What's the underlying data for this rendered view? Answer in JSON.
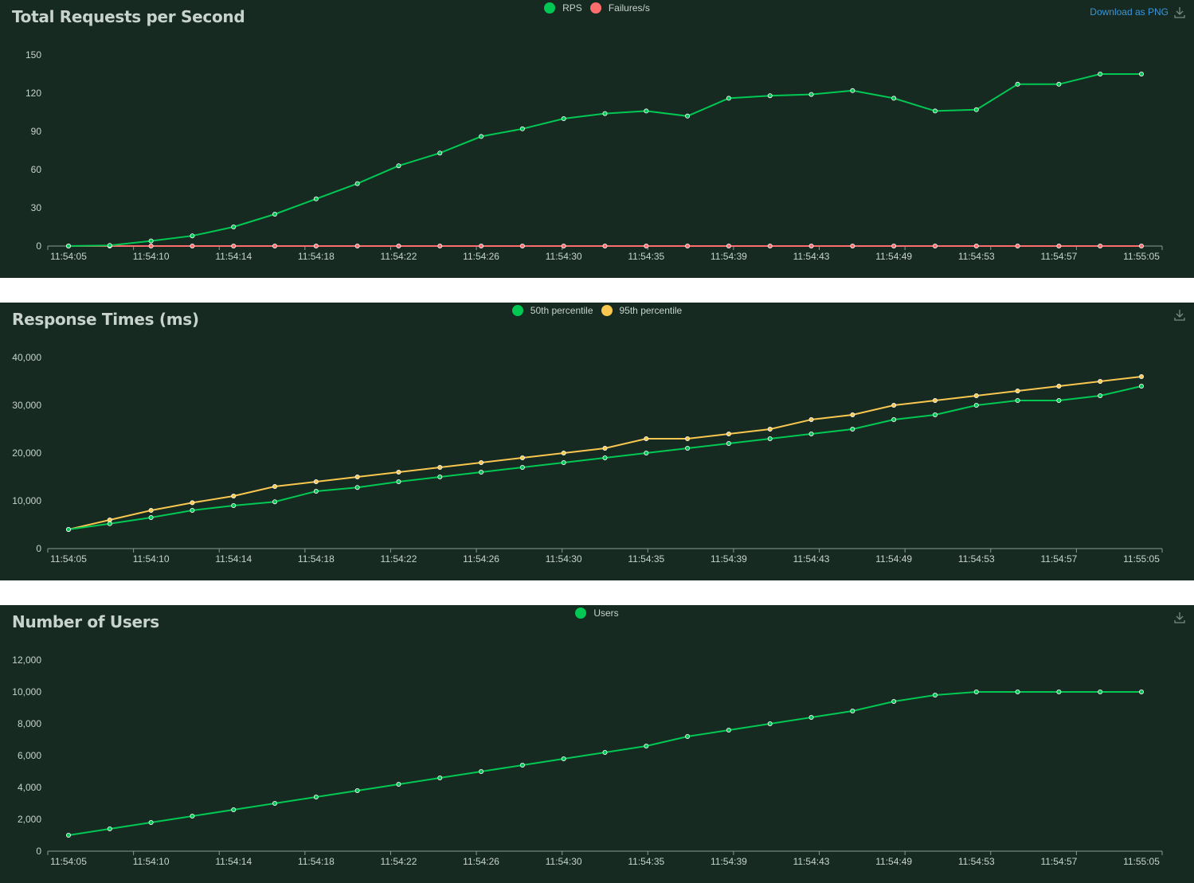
{
  "download_label": "Download as PNG",
  "icons": {
    "download": "download-icon"
  },
  "charts": [
    {
      "title": "Total Requests per Second",
      "legend": [
        {
          "label": "RPS",
          "color": "#00c853"
        },
        {
          "label": "Failures/s",
          "color": "#ff6d6d"
        }
      ]
    },
    {
      "title": "Response Times (ms)",
      "legend": [
        {
          "label": "50th percentile",
          "color": "#00c853"
        },
        {
          "label": "95th percentile",
          "color": "#f9c74f"
        }
      ]
    },
    {
      "title": "Number of Users",
      "legend": [
        {
          "label": "Users",
          "color": "#00c853"
        }
      ]
    }
  ],
  "chart_data": [
    {
      "type": "line",
      "title": "Total Requests per Second",
      "x": [
        "11:54:05",
        "11:54:07",
        "11:54:10",
        "11:54:12",
        "11:54:14",
        "11:54:16",
        "11:54:18",
        "11:54:20",
        "11:54:22",
        "11:54:24",
        "11:54:26",
        "11:54:28",
        "11:54:30",
        "11:54:32",
        "11:54:35",
        "11:54:37",
        "11:54:39",
        "11:54:41",
        "11:54:43",
        "11:54:45",
        "11:54:49",
        "11:54:51",
        "11:54:53",
        "11:54:55",
        "11:54:57",
        "11:54:59",
        "11:55:05"
      ],
      "x_tick_labels": [
        "11:54:05",
        "11:54:10",
        "11:54:14",
        "11:54:18",
        "11:54:22",
        "11:54:26",
        "11:54:30",
        "11:54:35",
        "11:54:39",
        "11:54:43",
        "11:54:49",
        "11:54:53",
        "11:54:57",
        "11:55:05"
      ],
      "ylim": [
        0,
        150
      ],
      "yticks": [
        "0",
        "30",
        "60",
        "90",
        "120",
        "150"
      ],
      "grid": false,
      "series": [
        {
          "name": "RPS",
          "color": "#00c853",
          "values": [
            0,
            0.5,
            4,
            8,
            15,
            25,
            37,
            49,
            63,
            73,
            86,
            92,
            100,
            104,
            106,
            102,
            116,
            118,
            119,
            122,
            116,
            106,
            107,
            127,
            127,
            135,
            135
          ]
        },
        {
          "name": "Failures/s",
          "color": "#ff6d6d",
          "values": [
            0,
            0,
            0,
            0,
            0,
            0,
            0,
            0,
            0,
            0,
            0,
            0,
            0,
            0,
            0,
            0,
            0,
            0,
            0,
            0,
            0,
            0,
            0,
            0,
            0,
            0,
            0
          ]
        }
      ]
    },
    {
      "type": "line",
      "title": "Response Times (ms)",
      "x": [
        "11:54:05",
        "11:54:07",
        "11:54:10",
        "11:54:12",
        "11:54:14",
        "11:54:16",
        "11:54:18",
        "11:54:20",
        "11:54:22",
        "11:54:24",
        "11:54:26",
        "11:54:28",
        "11:54:30",
        "11:54:32",
        "11:54:35",
        "11:54:37",
        "11:54:39",
        "11:54:41",
        "11:54:43",
        "11:54:45",
        "11:54:49",
        "11:54:51",
        "11:54:53",
        "11:54:55",
        "11:54:57",
        "11:54:59",
        "11:55:05"
      ],
      "x_tick_labels": [
        "11:54:05",
        "11:54:10",
        "11:54:14",
        "11:54:18",
        "11:54:22",
        "11:54:26",
        "11:54:30",
        "11:54:35",
        "11:54:39",
        "11:54:43",
        "11:54:49",
        "11:54:53",
        "11:54:57",
        "11:55:05"
      ],
      "ylim": [
        0,
        40000
      ],
      "yticks": [
        "0",
        "10,000",
        "20,000",
        "30,000",
        "40,000"
      ],
      "grid": false,
      "series": [
        {
          "name": "50th percentile",
          "color": "#00c853",
          "values": [
            4000,
            5200,
            6500,
            8000,
            9000,
            9800,
            12000,
            12800,
            14000,
            15000,
            16000,
            17000,
            18000,
            19000,
            20000,
            21000,
            22000,
            23000,
            24000,
            25000,
            27000,
            28000,
            30000,
            31000,
            31000,
            32000,
            34000
          ]
        },
        {
          "name": "95th percentile",
          "color": "#f9c74f",
          "values": [
            4000,
            6000,
            8000,
            9600,
            11000,
            13000,
            14000,
            15000,
            16000,
            17000,
            18000,
            19000,
            20000,
            21000,
            23000,
            23000,
            24000,
            25000,
            27000,
            28000,
            30000,
            31000,
            32000,
            33000,
            34000,
            35000,
            36000
          ]
        }
      ]
    },
    {
      "type": "line",
      "title": "Number of Users",
      "x": [
        "11:54:05",
        "11:54:07",
        "11:54:10",
        "11:54:12",
        "11:54:14",
        "11:54:16",
        "11:54:18",
        "11:54:20",
        "11:54:22",
        "11:54:24",
        "11:54:26",
        "11:54:28",
        "11:54:30",
        "11:54:32",
        "11:54:35",
        "11:54:37",
        "11:54:39",
        "11:54:41",
        "11:54:43",
        "11:54:45",
        "11:54:49",
        "11:54:51",
        "11:54:53",
        "11:54:55",
        "11:54:57",
        "11:54:59",
        "11:55:05"
      ],
      "x_tick_labels": [
        "11:54:05",
        "11:54:10",
        "11:54:14",
        "11:54:18",
        "11:54:22",
        "11:54:26",
        "11:54:30",
        "11:54:35",
        "11:54:39",
        "11:54:43",
        "11:54:49",
        "11:54:53",
        "11:54:57",
        "11:55:05"
      ],
      "ylim": [
        0,
        12000
      ],
      "yticks": [
        "0",
        "2,000",
        "4,000",
        "6,000",
        "8,000",
        "10,000",
        "12,000"
      ],
      "grid": false,
      "series": [
        {
          "name": "Users",
          "color": "#00c853",
          "values": [
            1000,
            1400,
            1800,
            2200,
            2600,
            3000,
            3400,
            3800,
            4200,
            4600,
            5000,
            5400,
            5800,
            6200,
            6600,
            7200,
            7600,
            8000,
            8400,
            8800,
            9400,
            9800,
            10000,
            10000,
            10000,
            10000,
            10000
          ]
        }
      ]
    }
  ]
}
